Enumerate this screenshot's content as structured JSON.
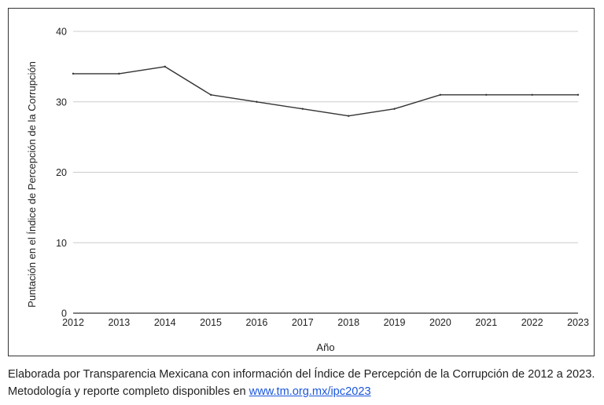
{
  "chart_data": {
    "type": "line",
    "x": [
      "2012",
      "2013",
      "2014",
      "2015",
      "2016",
      "2017",
      "2018",
      "2019",
      "2020",
      "2021",
      "2022",
      "2023"
    ],
    "series": [
      {
        "values": [
          34,
          34,
          35,
          31,
          30,
          29,
          28,
          29,
          31,
          31,
          31,
          31
        ]
      }
    ],
    "xlabel": "Año",
    "ylabel": "Puntación en el Índice de Percepción de la Corrupción",
    "ylim": [
      0,
      40
    ],
    "yticks": [
      "0",
      "10",
      "20",
      "30",
      "40"
    ],
    "grid": "horizontal",
    "line_color": "#333333",
    "grid_color": "#cccccc"
  },
  "caption": {
    "text": "Elaborada por Transparencia Mexicana con información del Índice de Percepción de la Corrupción de 2012 a 2023. Metodología y reporte completo disponibles en ",
    "link_text": "www.tm.org.mx/ipc2023"
  }
}
